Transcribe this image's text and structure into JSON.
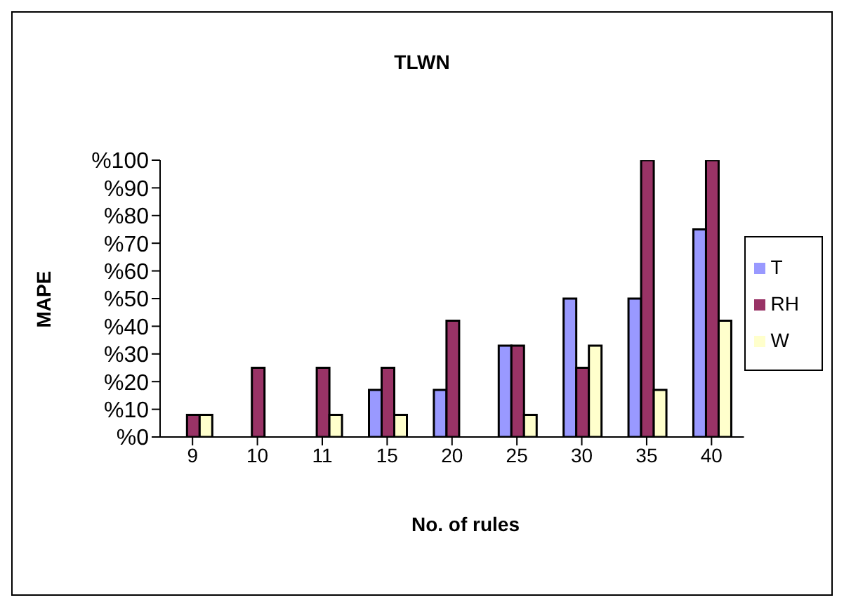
{
  "chart_data": {
    "type": "bar",
    "title": "TLWN",
    "xlabel": "No. of rules",
    "ylabel": "MAPE",
    "categories": [
      "9",
      "10",
      "11",
      "15",
      "20",
      "25",
      "30",
      "35",
      "40"
    ],
    "series": [
      {
        "name": "T",
        "color": "#9999ff",
        "values": [
          0,
          0,
          0,
          17,
          17,
          33,
          50,
          50,
          75
        ]
      },
      {
        "name": "RH",
        "color": "#993366",
        "values": [
          8,
          25,
          25,
          25,
          42,
          33,
          25,
          100,
          100
        ]
      },
      {
        "name": "W",
        "color": "#ffffcc",
        "values": [
          8,
          0,
          8,
          8,
          0,
          8,
          33,
          17,
          42
        ]
      }
    ],
    "ylim": [
      0,
      100
    ],
    "yticks": [
      {
        "value": 0,
        "label": "%0"
      },
      {
        "value": 10,
        "label": "%10"
      },
      {
        "value": 20,
        "label": "%20"
      },
      {
        "value": 30,
        "label": "%30"
      },
      {
        "value": 40,
        "label": "%40"
      },
      {
        "value": 50,
        "label": "%50"
      },
      {
        "value": 60,
        "label": "%60"
      },
      {
        "value": 70,
        "label": "%70"
      },
      {
        "value": 80,
        "label": "%80"
      },
      {
        "value": 90,
        "label": "%90"
      },
      {
        "value": 100,
        "label": "%100"
      }
    ],
    "grid": false,
    "legend": "right"
  }
}
